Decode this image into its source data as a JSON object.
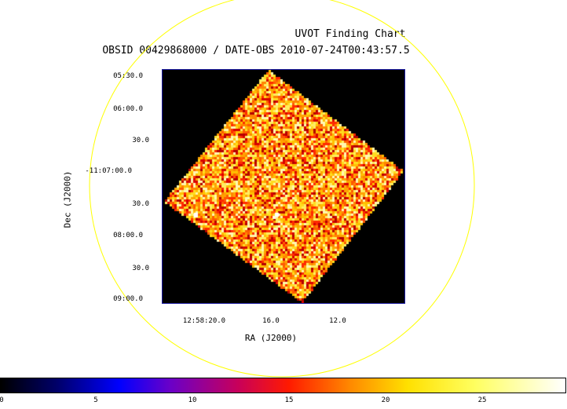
{
  "title": "UVOT Finding Chart",
  "subtitle": "OBSID 00429868000 / DATE-OBS 2010-07-24T00:43:57.5",
  "axes": {
    "dec_label": "Dec (J2000)",
    "ra_label": "RA (J2000)",
    "dec_ticks": [
      "05:30.0",
      "06:00.0",
      "30.0",
      "-11:07:00.0",
      "30.0",
      "08:00.0",
      "30.0",
      "09:00.0"
    ],
    "ra_ticks": [
      "12:58:20.0",
      "16.0",
      "12.0"
    ]
  },
  "colorbar": {
    "ticks": [
      "0",
      "5",
      "10",
      "15",
      "20",
      "25"
    ],
    "min": 0,
    "max": 29,
    "colormap": "heat"
  },
  "colors": {
    "circle": "#ffff00",
    "frame": "#1a1aa0",
    "background": "#000000"
  },
  "chart_data": {
    "type": "heatmap",
    "title": "UVOT Finding Chart",
    "subtitle": "OBSID 00429868000 / DATE-OBS 2010-07-24T00:43:57.5",
    "xlabel": "RA (J2000)",
    "ylabel": "Dec (J2000)",
    "x_ticks": [
      "12:58:20.0",
      "16.0",
      "12.0"
    ],
    "y_ticks": [
      "05:30.0",
      "06:00.0",
      "30.0",
      "-11:07:00.0",
      "30.0",
      "08:00.0",
      "30.0",
      "09:00.0"
    ],
    "colorbar_range": [
      0,
      29
    ],
    "colorbar_ticks": [
      0,
      5,
      10,
      15,
      20,
      25
    ],
    "grid": false
  }
}
